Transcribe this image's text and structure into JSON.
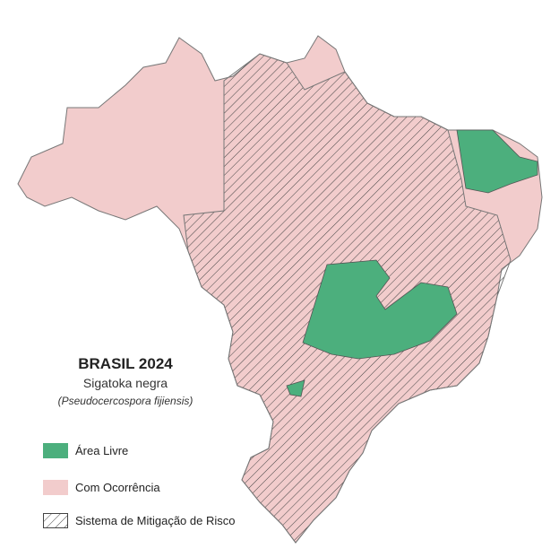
{
  "title": "BRASIL 2024",
  "subtitle": "Sigatoka negra",
  "scientific_name": "(Pseudocercospora fijiensis)",
  "legend": [
    {
      "label": "Área Livre",
      "color": "#4caf7d",
      "pattern": "solid"
    },
    {
      "label": "Com Ocorrência",
      "color": "#f2cccc",
      "pattern": "solid"
    },
    {
      "label": "Sistema de Mitigação de Risco",
      "color": "#ffffff",
      "pattern": "hatched"
    }
  ],
  "colors": {
    "free": "#4caf7d",
    "occurrence": "#f2cccc",
    "hatch": "#444444",
    "border": "#777777"
  }
}
